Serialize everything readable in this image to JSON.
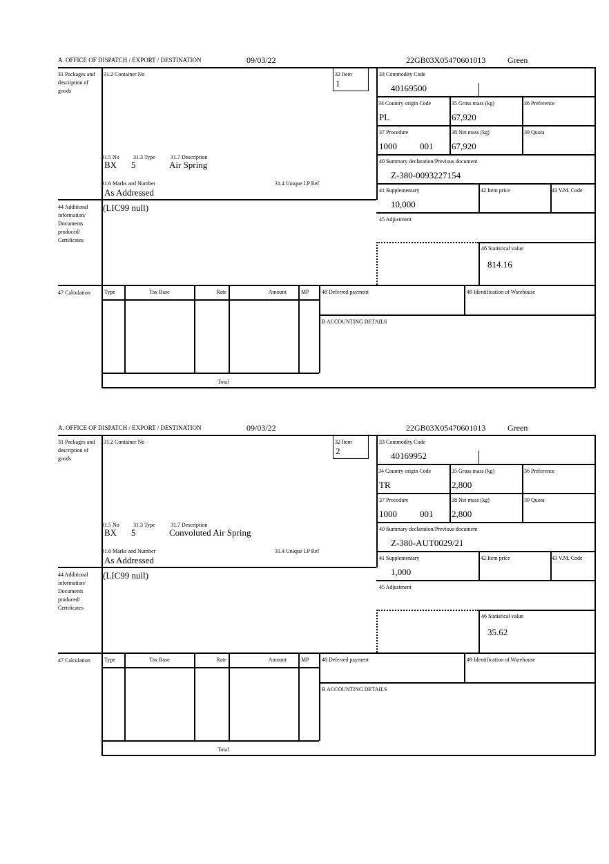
{
  "labels": {
    "office": "A. OFFICE OF DISPATCH / EXPORT / DESTINATION",
    "box31": "31 Packages and description of goods",
    "box31_2": "31.2 Container No",
    "box32": "32 Item",
    "box33": "33 Commodity Code",
    "box34": "34 Country origin Code",
    "box35": "35 Gross mass (kg)",
    "box36": "36 Preference",
    "box37": "37 Procedure",
    "box38": "38 Net mass (kg)",
    "box39": "39 Quota",
    "box40": "40 Summary declaration/Previous document",
    "box31_5": "31.5 No",
    "box31_3": "31.3 Type",
    "box31_7": "31.7 Description",
    "box31_6": "31.6 Marks and Number",
    "box31_4": "31.4 Unique LP Ref",
    "box41": "41 Supplementary",
    "box42": "42 Item price",
    "box43": "43 V.M. Code",
    "box44": "44 Additional information/ Documents produced/ Certificates",
    "box45": "45 Adjustment",
    "box46": "46 Statistical value",
    "box47": "47 Calculation",
    "calc_headers": [
      "Type",
      "Tax Base",
      "Rate",
      "Amount",
      "MP"
    ],
    "total": "Total",
    "box48": "48 Deferred payment",
    "box49": "49 Identification of Warehouse",
    "accounting": "B ACCOUNTING DETAILS"
  },
  "items": [
    {
      "date": "09/03/22",
      "reference": "22GB03X05470601013",
      "route": "Green",
      "item_no": "1",
      "commodity_code": "40169500",
      "country_origin": "PL",
      "gross_mass": "67,920",
      "procedure": "1000",
      "procedure_additional": "001",
      "net_mass": "67,920",
      "previous_document": "Z-380-0093227154",
      "package_kind": "BX",
      "package_count": "5",
      "description": "Air Spring",
      "marks": "As Addressed",
      "additional_info": "(LIC99 null)",
      "supplementary": "10,000",
      "statistical_value": "814.16"
    },
    {
      "date": "09/03/22",
      "reference": "22GB03X05470601013",
      "route": "Green",
      "item_no": "2",
      "commodity_code": "40169952",
      "country_origin": "TR",
      "gross_mass": "2,800",
      "procedure": "1000",
      "procedure_additional": "001",
      "net_mass": "2,800",
      "previous_document": "Z-380-AUT0029/21",
      "package_kind": "BX",
      "package_count": "5",
      "description": "Convoluted Air Spring",
      "marks": "As Addressed",
      "additional_info": "(LIC99 null)",
      "supplementary": "1,000",
      "statistical_value": "35.62"
    }
  ]
}
